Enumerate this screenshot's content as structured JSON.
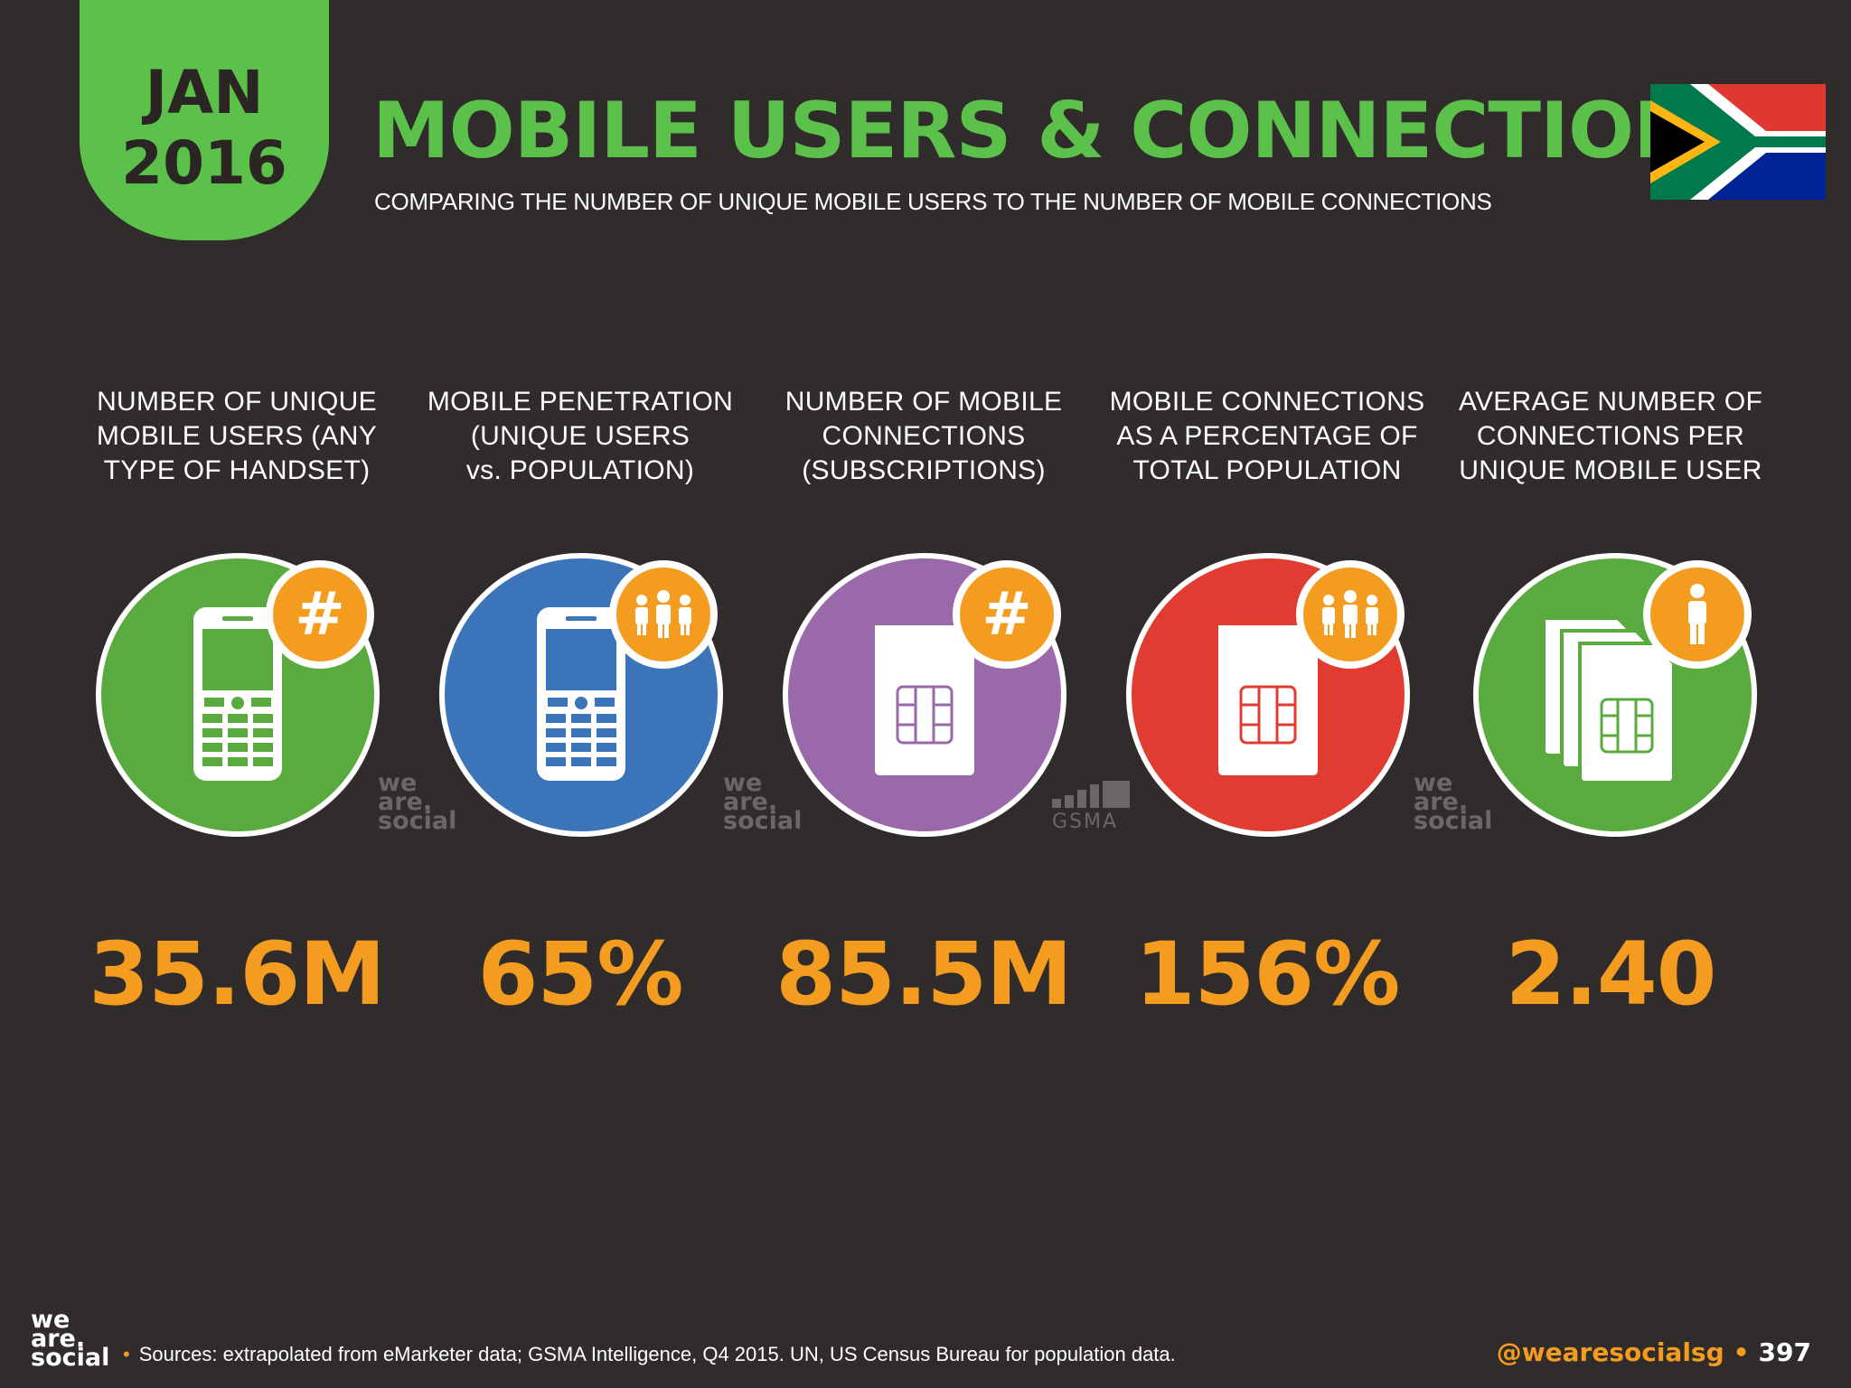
{
  "header": {
    "month": "JAN",
    "year": "2016",
    "title": "MOBILE USERS & CONNECTIONS",
    "subtitle": "COMPARING THE NUMBER OF UNIQUE MOBILE USERS TO THE NUMBER OF MOBILE CONNECTIONS"
  },
  "flag": {
    "icon": "south-africa-flag-icon"
  },
  "stats": [
    {
      "label_lines": [
        "NUMBER OF UNIQUE",
        "MOBILE USERS (ANY",
        "TYPE OF HANDSET)"
      ],
      "value": "35.6M",
      "color": "#5aab3f",
      "icon": "mobile-phone-icon",
      "badge": "hash-icon"
    },
    {
      "label_lines": [
        "MOBILE PENETRATION",
        "(UNIQUE USERS",
        "vs. POPULATION)"
      ],
      "value": "65%",
      "color": "#3b74b9",
      "icon": "mobile-phone-icon",
      "badge": "people-group-icon"
    },
    {
      "label_lines": [
        "NUMBER OF MOBILE",
        "CONNECTIONS",
        "(SUBSCRIPTIONS)"
      ],
      "value": "85.5M",
      "color": "#9a69a9",
      "icon": "sim-card-icon",
      "badge": "hash-icon"
    },
    {
      "label_lines": [
        "MOBILE CONNECTIONS",
        "AS A PERCENTAGE OF",
        "TOTAL POPULATION"
      ],
      "value": "156%",
      "color": "#e03c31",
      "icon": "sim-card-icon",
      "badge": "people-group-icon"
    },
    {
      "label_lines": [
        "AVERAGE NUMBER OF",
        "CONNECTIONS PER",
        "UNIQUE MOBILE USER"
      ],
      "value": "2.40",
      "color": "#5aab3f",
      "icon": "multiple-sim-cards-icon",
      "badge": "person-icon"
    }
  ],
  "watermarks": {
    "we": "we",
    "are": "are.",
    "social": "social",
    "gsma": "GSMA"
  },
  "footer": {
    "logo_we": "we",
    "logo_are": "are.",
    "logo_social": "social",
    "sources": "Sources: extrapolated from eMarketer data; GSMA Intelligence, Q4 2015. UN, US Census Bureau for population data.",
    "handle": "@wearesocialsg",
    "page_number": "397"
  }
}
